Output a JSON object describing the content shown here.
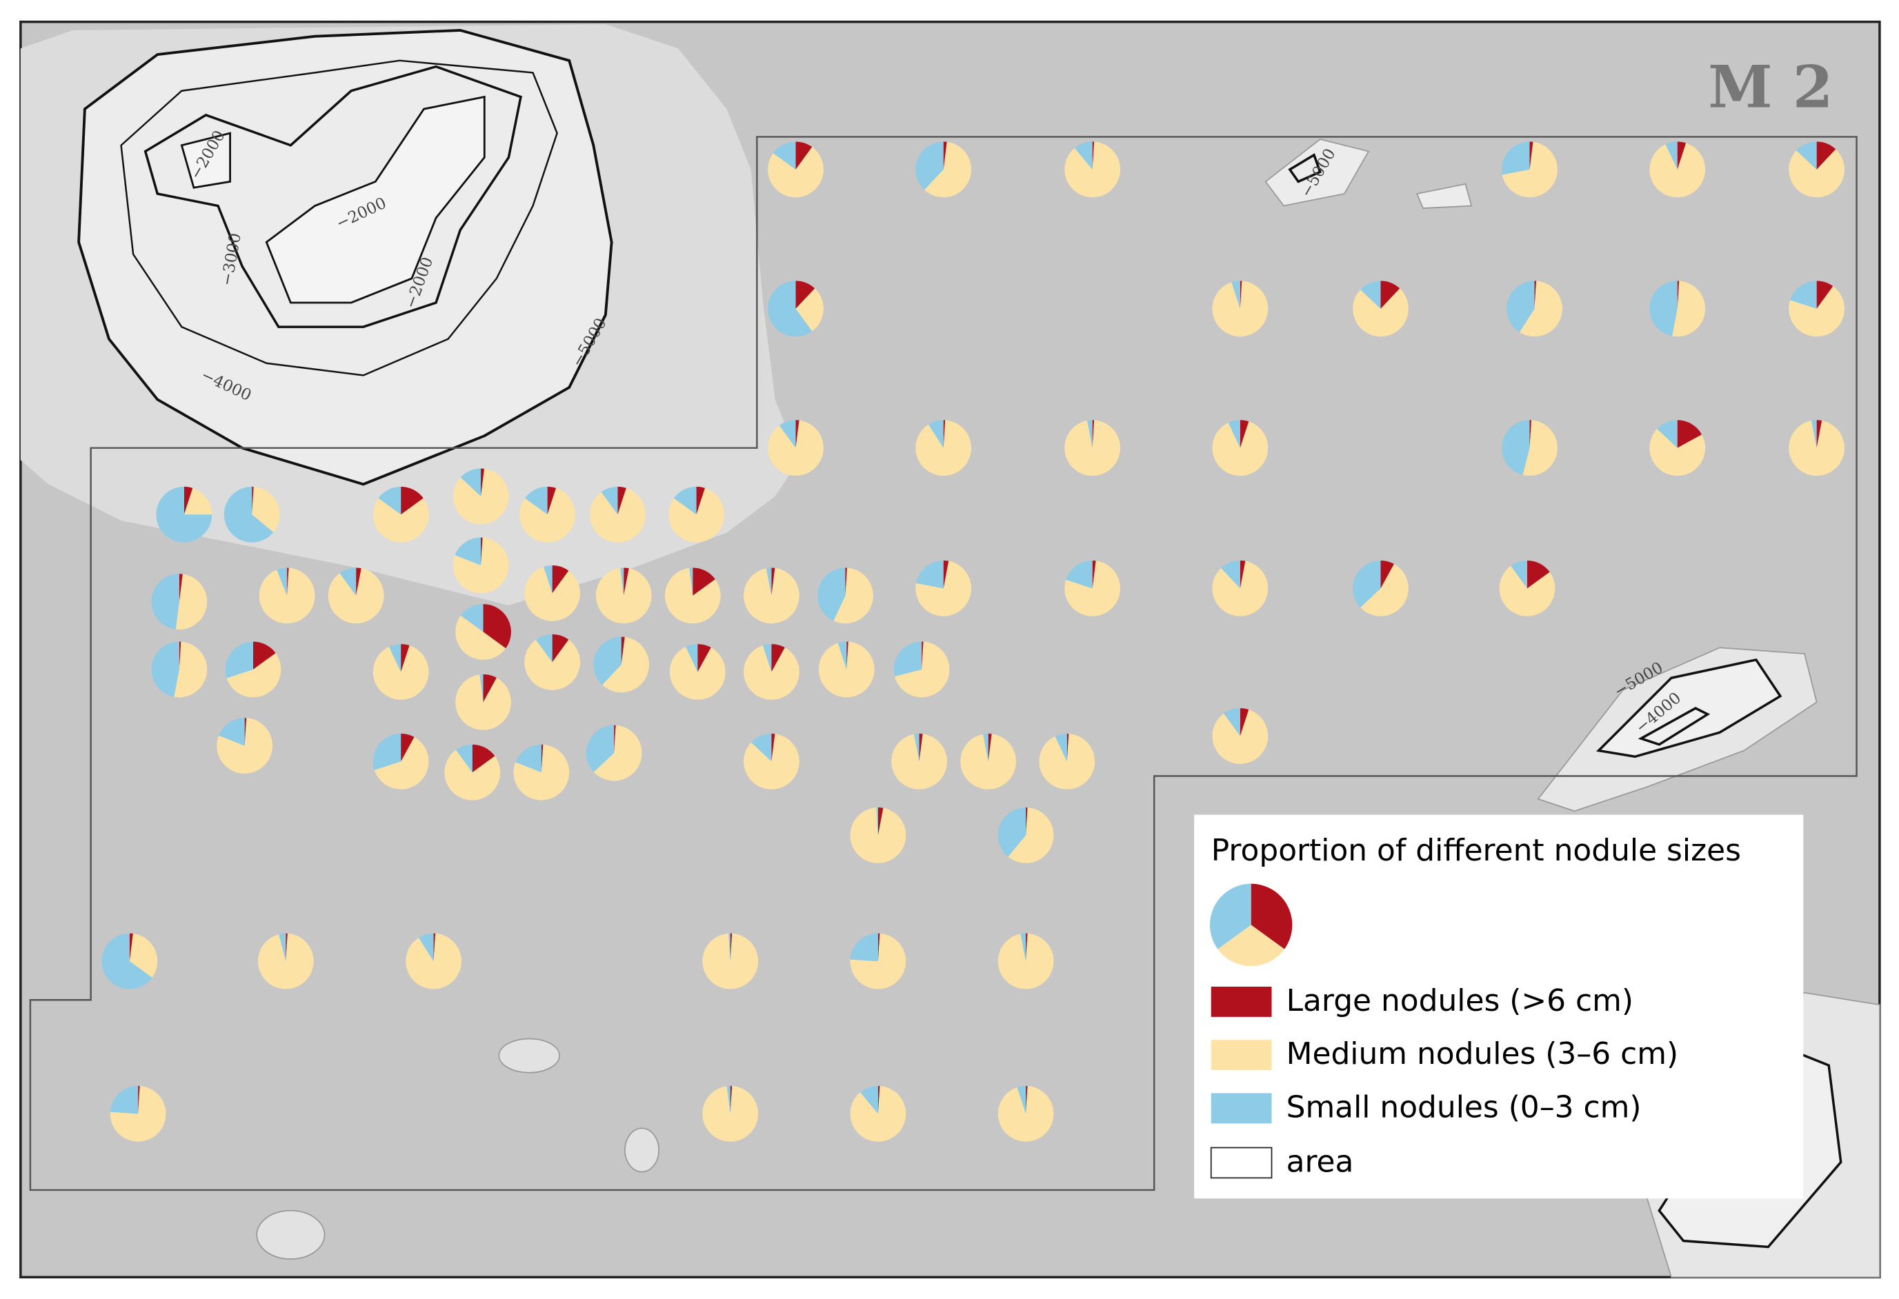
{
  "map_label": "M 2",
  "contour_labels": [
    "−2000",
    "−2000",
    "−3000",
    "−2000",
    "−4000",
    "−5000",
    "−5000",
    "−5000",
    "−4000"
  ],
  "legend": {
    "title": "Proportion of different nodule sizes",
    "example_pie": [
      35,
      30,
      35
    ],
    "items": [
      {
        "label": "Large nodules (>6 cm)",
        "color": "#b0111d"
      },
      {
        "label": "Medium nodules (3–6 cm)",
        "color": "#fde2a6"
      },
      {
        "label": "Small nodules (0–3 cm)",
        "color": "#8dcbe6"
      }
    ],
    "area_label": "area"
  },
  "stations": [
    [
      10,
      75,
      15
    ],
    [
      2,
      60,
      38
    ],
    [
      1,
      88,
      11
    ],
    [
      2,
      70,
      28
    ],
    [
      5,
      88,
      7
    ],
    [
      12,
      75,
      13
    ],
    [
      12,
      28,
      60
    ],
    [
      1,
      94,
      5
    ],
    [
      12,
      75,
      13
    ],
    [
      1,
      58,
      41
    ],
    [
      1,
      52,
      47
    ],
    [
      10,
      70,
      20
    ],
    [
      2,
      88,
      10
    ],
    [
      1,
      90,
      9
    ],
    [
      1,
      96,
      3
    ],
    [
      5,
      88,
      7
    ],
    [
      1,
      53,
      46
    ],
    [
      17,
      70,
      13
    ],
    [
      3,
      94,
      3
    ],
    [
      5,
      20,
      75
    ],
    [
      1,
      35,
      64
    ],
    [
      15,
      70,
      15
    ],
    [
      2,
      85,
      13
    ],
    [
      5,
      80,
      15
    ],
    [
      5,
      85,
      10
    ],
    [
      5,
      80,
      15
    ],
    [
      1,
      80,
      19
    ],
    [
      2,
      50,
      48
    ],
    [
      1,
      93,
      6
    ],
    [
      3,
      87,
      10
    ],
    [
      10,
      85,
      5
    ],
    [
      3,
      95,
      2
    ],
    [
      15,
      83,
      2
    ],
    [
      2,
      95,
      3
    ],
    [
      1,
      56,
      43
    ],
    [
      3,
      75,
      22
    ],
    [
      2,
      78,
      20
    ],
    [
      3,
      85,
      12
    ],
    [
      8,
      55,
      37
    ],
    [
      15,
      75,
      10
    ],
    [
      35,
      50,
      15
    ],
    [
      1,
      52,
      47
    ],
    [
      15,
      55,
      30
    ],
    [
      5,
      88,
      7
    ],
    [
      10,
      80,
      10
    ],
    [
      2,
      60,
      38
    ],
    [
      8,
      85,
      7
    ],
    [
      8,
      87,
      5
    ],
    [
      1,
      94,
      5
    ],
    [
      1,
      70,
      29
    ],
    [
      8,
      90,
      2
    ],
    [
      1,
      80,
      19
    ],
    [
      8,
      62,
      30
    ],
    [
      15,
      75,
      10
    ],
    [
      1,
      80,
      19
    ],
    [
      1,
      62,
      37
    ],
    [
      2,
      85,
      13
    ],
    [
      2,
      95,
      3
    ],
    [
      2,
      95,
      3
    ],
    [
      1,
      92,
      7
    ],
    [
      5,
      85,
      10
    ],
    [
      3,
      96,
      1
    ],
    [
      1,
      60,
      39
    ],
    [
      2,
      33,
      65
    ],
    [
      1,
      95,
      4
    ],
    [
      1,
      90,
      9
    ],
    [
      1,
      98,
      1
    ],
    [
      1,
      75,
      24
    ],
    [
      1,
      96,
      3
    ],
    [
      1,
      75,
      24
    ],
    [
      1,
      97,
      2
    ],
    [
      1,
      88,
      11
    ],
    [
      1,
      94,
      5
    ]
  ]
}
